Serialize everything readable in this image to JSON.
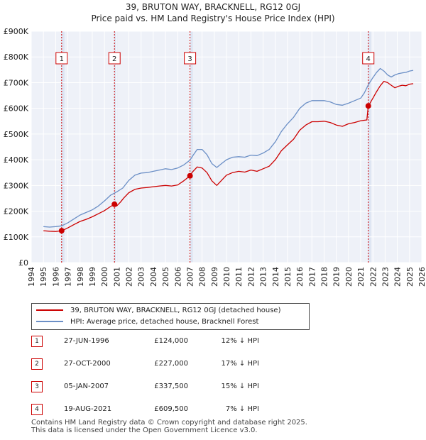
{
  "title_line1": "39, BRUTON WAY, BRACKNELL, RG12 0GJ",
  "title_line2": "Price paid vs. HM Land Registry's House Price Index (HPI)",
  "chart_data": {
    "type": "line",
    "ylim": [
      0,
      900000
    ],
    "xlim": [
      1994,
      2026
    ],
    "y_ticks": [
      0,
      100000,
      200000,
      300000,
      400000,
      500000,
      600000,
      700000,
      800000,
      900000
    ],
    "y_tick_labels": [
      "£0",
      "£100K",
      "£200K",
      "£300K",
      "£400K",
      "£500K",
      "£600K",
      "£700K",
      "£800K",
      "£900K"
    ],
    "x_ticks": [
      "1994",
      "1995",
      "1996",
      "1997",
      "1998",
      "1999",
      "2000",
      "2001",
      "2002",
      "2003",
      "2004",
      "2005",
      "2006",
      "2007",
      "2008",
      "2009",
      "2010",
      "2011",
      "2012",
      "2013",
      "2014",
      "2015",
      "2016",
      "2017",
      "2018",
      "2019",
      "2020",
      "2021",
      "2022",
      "2023",
      "2024",
      "2025",
      "2026"
    ],
    "series": [
      {
        "name": "39, BRUTON WAY, BRACKNELL, RG12 0GJ (detached house)",
        "color": "#cc0000",
        "x": [
          1995.0,
          1995.5,
          1996.0,
          1996.49,
          1996.6,
          1997.0,
          1997.5,
          1998.0,
          1998.5,
          1999.0,
          1999.5,
          2000.0,
          2000.5,
          2000.82,
          2001.0,
          2001.3,
          2001.6,
          2002.0,
          2002.5,
          2003.0,
          2003.5,
          2004.0,
          2004.5,
          2005.0,
          2005.5,
          2006.0,
          2006.5,
          2007.01,
          2007.2,
          2007.6,
          2008.0,
          2008.4,
          2008.8,
          2009.2,
          2009.6,
          2010.0,
          2010.5,
          2011.0,
          2011.5,
          2012.0,
          2012.5,
          2013.0,
          2013.5,
          2014.0,
          2014.5,
          2015.0,
          2015.5,
          2016.0,
          2016.5,
          2017.0,
          2017.5,
          2018.0,
          2018.5,
          2019.0,
          2019.5,
          2020.0,
          2020.5,
          2021.0,
          2021.5,
          2021.62,
          2021.7,
          2022.0,
          2022.3,
          2022.6,
          2022.9,
          2023.2,
          2023.5,
          2023.8,
          2024.1,
          2024.4,
          2024.7,
          2025.0,
          2025.3
        ],
        "values": [
          124000,
          122000,
          121000,
          124000,
          126000,
          135000,
          148000,
          160000,
          168000,
          178000,
          190000,
          202000,
          218000,
          227000,
          220000,
          235000,
          252000,
          272000,
          285000,
          290000,
          292000,
          295000,
          298000,
          300000,
          298000,
          302000,
          318000,
          337500,
          352000,
          372000,
          368000,
          350000,
          318000,
          300000,
          320000,
          340000,
          350000,
          355000,
          352000,
          360000,
          355000,
          365000,
          375000,
          400000,
          435000,
          458000,
          480000,
          515000,
          535000,
          548000,
          548000,
          550000,
          545000,
          535000,
          530000,
          540000,
          545000,
          552000,
          555000,
          609500,
          615000,
          640000,
          665000,
          688000,
          705000,
          700000,
          690000,
          680000,
          686000,
          690000,
          688000,
          694000,
          696000
        ]
      },
      {
        "name": "HPI: Average price, detached house, Bracknell Forest",
        "color": "#6b8fc6",
        "x": [
          1995.0,
          1995.5,
          1996.0,
          1996.5,
          1997.0,
          1997.5,
          1998.0,
          1998.5,
          1999.0,
          1999.5,
          2000.0,
          2000.5,
          2001.0,
          2001.5,
          2002.0,
          2002.5,
          2003.0,
          2003.5,
          2004.0,
          2004.5,
          2005.0,
          2005.5,
          2006.0,
          2006.5,
          2007.0,
          2007.3,
          2007.6,
          2008.0,
          2008.4,
          2008.8,
          2009.2,
          2009.6,
          2010.0,
          2010.5,
          2011.0,
          2011.5,
          2012.0,
          2012.5,
          2013.0,
          2013.5,
          2014.0,
          2014.5,
          2015.0,
          2015.5,
          2016.0,
          2016.5,
          2017.0,
          2017.5,
          2018.0,
          2018.5,
          2019.0,
          2019.5,
          2020.0,
          2020.5,
          2021.0,
          2021.3,
          2021.6,
          2022.0,
          2022.3,
          2022.6,
          2022.9,
          2023.2,
          2023.5,
          2023.8,
          2024.1,
          2024.4,
          2024.7,
          2025.0,
          2025.3
        ],
        "values": [
          140000,
          138000,
          140000,
          143000,
          155000,
          170000,
          185000,
          195000,
          205000,
          220000,
          240000,
          262000,
          275000,
          290000,
          320000,
          340000,
          348000,
          350000,
          355000,
          360000,
          365000,
          362000,
          368000,
          380000,
          398000,
          420000,
          440000,
          440000,
          420000,
          385000,
          370000,
          385000,
          400000,
          410000,
          412000,
          410000,
          418000,
          416000,
          426000,
          440000,
          470000,
          510000,
          540000,
          565000,
          600000,
          620000,
          630000,
          630000,
          630000,
          625000,
          615000,
          612000,
          620000,
          630000,
          640000,
          660000,
          690000,
          720000,
          740000,
          755000,
          745000,
          730000,
          722000,
          730000,
          735000,
          738000,
          740000,
          745000,
          748000
        ]
      }
    ],
    "sales": [
      {
        "label": "1",
        "x": 1996.49,
        "value": 124000
      },
      {
        "label": "2",
        "x": 2000.82,
        "value": 227000
      },
      {
        "label": "3",
        "x": 2007.01,
        "value": 337500
      },
      {
        "label": "4",
        "x": 2021.62,
        "value": 609500
      }
    ]
  },
  "legend": {
    "property_label": "39, BRUTON WAY, BRACKNELL, RG12 0GJ (detached house)",
    "hpi_label": "HPI: Average price, detached house, Bracknell Forest",
    "property_color": "#cc0000",
    "hpi_color": "#6b8fc6"
  },
  "transactions": [
    {
      "num": "1",
      "date": "27-JUN-1996",
      "price": "£124,000",
      "hpi": "12% ↓ HPI"
    },
    {
      "num": "2",
      "date": "27-OCT-2000",
      "price": "£227,000",
      "hpi": "17% ↓ HPI"
    },
    {
      "num": "3",
      "date": "05-JAN-2007",
      "price": "£337,500",
      "hpi": "15% ↓ HPI"
    },
    {
      "num": "4",
      "date": "19-AUG-2021",
      "price": "£609,500",
      "hpi": "7% ↓ HPI"
    }
  ],
  "footer": {
    "line1": "Contains HM Land Registry data © Crown copyright and database right 2025.",
    "line2": "This data is licensed under the Open Government Licence v3.0."
  }
}
